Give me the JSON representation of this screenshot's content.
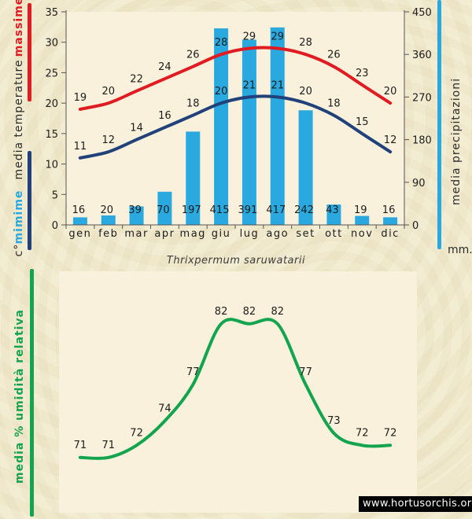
{
  "title": "Thrixpermum saruwatarii",
  "watermark": "www.hortusorchis.org",
  "colors": {
    "red": "#e11b22",
    "navy": "#20417a",
    "cyan": "#29a9e0",
    "green": "#13a450",
    "page_bg": "#f1ebcf",
    "plot_bg": "#f9f1db",
    "axis": "#555555",
    "text": "#1c1c1c",
    "watermark_bg": "#000000",
    "watermark_fg": "#ffffff"
  },
  "top_chart": {
    "labels": {
      "massime": "massime",
      "media_temperature": "media  temperature",
      "minime": "mimime",
      "unit_left": "c°",
      "precipitazioni": "media  precipitazioni",
      "unit_right": "mm."
    }
  },
  "bottom_chart": {
    "ylabel": "media % umidità relativa"
  },
  "chart_data": [
    {
      "type": "bar",
      "title": "",
      "categories": [
        "gen",
        "feb",
        "mar",
        "apr",
        "mag",
        "giu",
        "lug",
        "ago",
        "set",
        "ott",
        "nov",
        "dic"
      ],
      "series": [
        {
          "name": "massime",
          "kind": "line",
          "axis": "left",
          "color_key": "red",
          "values": [
            19,
            20,
            22,
            24,
            26,
            28,
            29,
            29,
            28,
            26,
            23,
            20
          ]
        },
        {
          "name": "minime",
          "kind": "line",
          "axis": "left",
          "color_key": "navy",
          "values": [
            11,
            12,
            14,
            16,
            18,
            20,
            21,
            21,
            20,
            18,
            15,
            12
          ]
        },
        {
          "name": "media precipitazioni",
          "kind": "bar",
          "axis": "right",
          "color_key": "cyan",
          "values": [
            16,
            20,
            39,
            70,
            197,
            415,
            391,
            417,
            242,
            43,
            19,
            16
          ]
        }
      ],
      "left_axis": {
        "label": "c° mimime media temperature massime",
        "min": 0,
        "max": 35,
        "ticks": [
          0,
          5,
          10,
          15,
          20,
          25,
          30,
          35
        ]
      },
      "right_axis": {
        "label": "media precipitazioni (mm.)",
        "min": 0,
        "max": 450,
        "ticks": [
          0,
          90,
          180,
          270,
          360,
          450
        ]
      },
      "grid": false,
      "legend": "none"
    },
    {
      "type": "line",
      "title": "Thrixpermum saruwatarii",
      "categories": [
        "gen",
        "feb",
        "mar",
        "apr",
        "mag",
        "giu",
        "lug",
        "ago",
        "set",
        "ott",
        "nov",
        "dic"
      ],
      "series": [
        {
          "name": "media % umidità relativa",
          "kind": "line",
          "color_key": "green",
          "values": [
            71,
            71,
            72,
            74,
            77,
            82,
            82,
            82,
            77,
            73,
            72,
            72
          ]
        }
      ],
      "left_axis": {
        "label": "media % umidità relativa",
        "min": 66,
        "max": 86,
        "ticks": []
      },
      "grid": false,
      "legend": "none",
      "x_labels_shown": false
    }
  ]
}
